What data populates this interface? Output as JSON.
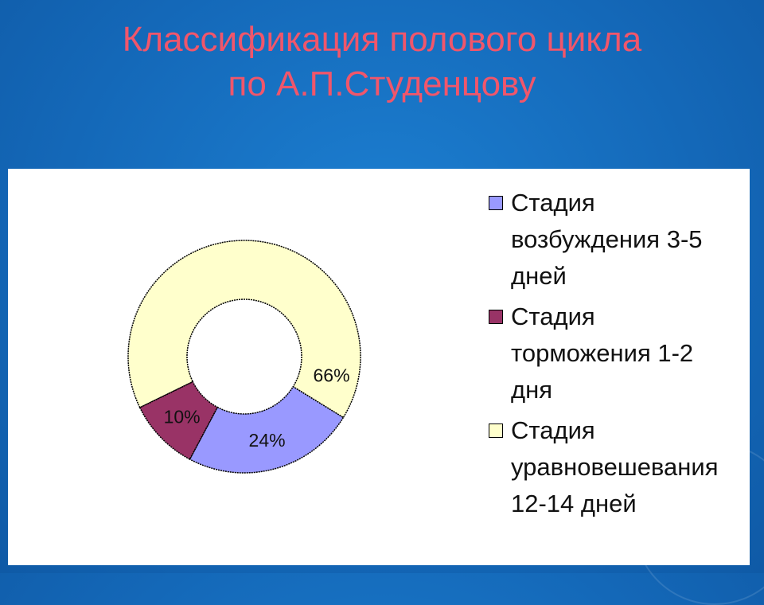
{
  "slide": {
    "title_line1": "Классификация полового цикла",
    "title_line2": "по А.П.Студенцову"
  },
  "chart_data": {
    "type": "pie",
    "variant": "doughnut",
    "categories": [
      "Стадия возбуждения 3-5 дней",
      "Стадия торможения 1-2 дня",
      "Стадия уравновешевания 12-14 дней"
    ],
    "values": [
      24,
      10,
      66
    ],
    "data_labels": [
      "24%",
      "10%",
      "66%"
    ],
    "colors": [
      "#9999ff",
      "#993366",
      "#ffffcc"
    ],
    "legend_position": "right"
  }
}
